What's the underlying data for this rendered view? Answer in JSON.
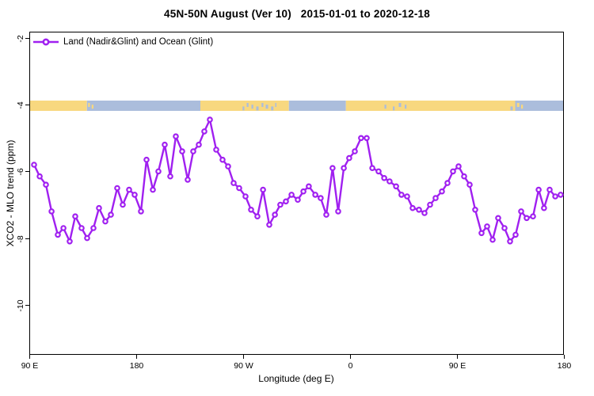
{
  "header": {
    "title": "45N-50N August (Ver 10)   2015-01-01 to 2020-12-18"
  },
  "colors": {
    "line": "#A020F0",
    "marker_fill": "#FFFFFF",
    "land": "#F8D87F",
    "ocean": "#ABBDDC",
    "axis": "#000000",
    "background": "#FFFFFF"
  },
  "chart_data": {
    "type": "line",
    "title": "45N-50N August (Ver 10)   2015-01-01 to 2020-12-18",
    "xlabel": "Longitude (deg E)",
    "ylabel": "XCO2 - MLO trend (ppm)",
    "grid": false,
    "x_axis": {
      "range": [
        90,
        540
      ],
      "ticks": [
        90,
        180,
        270,
        360,
        450,
        540
      ],
      "tick_labels": [
        "90 E",
        "180",
        "90 W",
        "0",
        "90 E",
        "180"
      ],
      "note": "longitude axis wraps eastward: 90E, 180, 90W, 0, 90E, 180"
    },
    "y_axis": {
      "range": [
        -11.5,
        -1.8
      ],
      "ticks": [
        -2,
        -4,
        -6,
        -8,
        -10
      ],
      "tick_labels": [
        "-2",
        "-4",
        "-6",
        "-8",
        "-10"
      ]
    },
    "legend": {
      "position": "top-left",
      "entries": [
        {
          "label": "Land (Nadir&Glint) and Ocean (Glint)",
          "color": "#A020F0",
          "marker": "open-circle"
        }
      ]
    },
    "series": [
      {
        "name": "Land (Nadir&Glint) and Ocean (Glint)",
        "color": "#A020F0",
        "marker": "open-circle",
        "points": [
          [
            94,
            -5.8
          ],
          [
            98.7,
            -6.15
          ],
          [
            104,
            -6.4
          ],
          [
            108.7,
            -7.2
          ],
          [
            114,
            -7.9
          ],
          [
            118.7,
            -7.7
          ],
          [
            124,
            -8.1
          ],
          [
            128.7,
            -7.35
          ],
          [
            134,
            -7.7
          ],
          [
            138.7,
            -8.0
          ],
          [
            144,
            -7.7
          ],
          [
            148.7,
            -7.1
          ],
          [
            154,
            -7.5
          ],
          [
            158.7,
            -7.3
          ],
          [
            164,
            -6.5
          ],
          [
            168.7,
            -7.0
          ],
          [
            174,
            -6.55
          ],
          [
            178.7,
            -6.7
          ],
          [
            184,
            -7.2
          ],
          [
            188.7,
            -5.65
          ],
          [
            194,
            -6.55
          ],
          [
            198.7,
            -6.0
          ],
          [
            204,
            -5.2
          ],
          [
            208.7,
            -6.15
          ],
          [
            213.3,
            -4.95
          ],
          [
            218.7,
            -5.4
          ],
          [
            223.3,
            -6.25
          ],
          [
            228,
            -5.4
          ],
          [
            232.7,
            -5.2
          ],
          [
            237.3,
            -4.8
          ],
          [
            242,
            -4.45
          ],
          [
            247.3,
            -5.35
          ],
          [
            252.7,
            -5.65
          ],
          [
            257.3,
            -5.85
          ],
          [
            262,
            -6.35
          ],
          [
            266.7,
            -6.5
          ],
          [
            272,
            -6.75
          ],
          [
            276.7,
            -7.15
          ],
          [
            282,
            -7.35
          ],
          [
            286.7,
            -6.55
          ],
          [
            292,
            -7.6
          ],
          [
            296.7,
            -7.3
          ],
          [
            301.3,
            -7.0
          ],
          [
            306,
            -6.9
          ],
          [
            310.7,
            -6.7
          ],
          [
            316,
            -6.85
          ],
          [
            320.7,
            -6.6
          ],
          [
            325.3,
            -6.45
          ],
          [
            330.7,
            -6.7
          ],
          [
            335.3,
            -6.8
          ],
          [
            340,
            -7.3
          ],
          [
            345.3,
            -5.9
          ],
          [
            350,
            -7.2
          ],
          [
            354.7,
            -5.9
          ],
          [
            359.3,
            -5.6
          ],
          [
            364,
            -5.4
          ],
          [
            369.3,
            -5.0
          ],
          [
            374,
            -5.0
          ],
          [
            378.7,
            -5.9
          ],
          [
            384,
            -6.0
          ],
          [
            388.7,
            -6.2
          ],
          [
            393.3,
            -6.3
          ],
          [
            398.7,
            -6.45
          ],
          [
            403.3,
            -6.7
          ],
          [
            408,
            -6.75
          ],
          [
            412.7,
            -7.1
          ],
          [
            418,
            -7.15
          ],
          [
            422.7,
            -7.25
          ],
          [
            427.3,
            -7.0
          ],
          [
            432,
            -6.8
          ],
          [
            437.3,
            -6.6
          ],
          [
            442,
            -6.35
          ],
          [
            446.7,
            -6.0
          ],
          [
            451.3,
            -5.85
          ],
          [
            456,
            -6.15
          ],
          [
            460.7,
            -6.4
          ],
          [
            465.3,
            -7.15
          ],
          [
            470.7,
            -7.85
          ],
          [
            475.3,
            -7.65
          ],
          [
            480,
            -8.05
          ],
          [
            484.7,
            -7.4
          ],
          [
            490,
            -7.7
          ],
          [
            494.7,
            -8.1
          ],
          [
            499.3,
            -7.9
          ],
          [
            504,
            -7.2
          ],
          [
            508.7,
            -7.4
          ],
          [
            514,
            -7.35
          ],
          [
            518.7,
            -6.55
          ],
          [
            523.3,
            -7.1
          ],
          [
            528,
            -6.55
          ],
          [
            532.7,
            -6.75
          ],
          [
            537.3,
            -6.7
          ]
        ]
      }
    ],
    "map_strip": {
      "description": "land/ocean mask band drawn across the plot near y = -4",
      "y_value": -4,
      "land_color": "#F8D87F",
      "ocean_color": "#ABBDDC",
      "segments": [
        {
          "type": "land",
          "from": 90,
          "to": 138.5
        },
        {
          "type": "ocean",
          "from": 138.5,
          "to": 234
        },
        {
          "type": "land",
          "from": 234,
          "to": 308.5
        },
        {
          "type": "ocean",
          "from": 308.5,
          "to": 356.5
        },
        {
          "type": "land",
          "from": 356.5,
          "to": 499
        },
        {
          "type": "ocean",
          "from": 499,
          "to": 540
        }
      ],
      "speckles": [
        {
          "type": "land",
          "from": 139.5,
          "to": 141
        },
        {
          "type": "land",
          "from": 142.5,
          "to": 144
        },
        {
          "type": "ocean",
          "from": 269.5,
          "to": 271
        },
        {
          "type": "ocean",
          "from": 273,
          "to": 274.5
        },
        {
          "type": "ocean",
          "from": 277,
          "to": 278.5
        },
        {
          "type": "ocean",
          "from": 281,
          "to": 283
        },
        {
          "type": "ocean",
          "from": 285.5,
          "to": 287
        },
        {
          "type": "ocean",
          "from": 289,
          "to": 291
        },
        {
          "type": "ocean",
          "from": 293.5,
          "to": 295.5
        },
        {
          "type": "ocean",
          "from": 297,
          "to": 298
        },
        {
          "type": "ocean",
          "from": 389,
          "to": 390.5
        },
        {
          "type": "ocean",
          "from": 396,
          "to": 397.5
        },
        {
          "type": "ocean",
          "from": 401,
          "to": 403
        },
        {
          "type": "ocean",
          "from": 406,
          "to": 407.5
        },
        {
          "type": "ocean",
          "from": 495,
          "to": 497
        },
        {
          "type": "land",
          "from": 500.5,
          "to": 502.5
        },
        {
          "type": "land",
          "from": 504,
          "to": 505.5
        }
      ]
    }
  }
}
